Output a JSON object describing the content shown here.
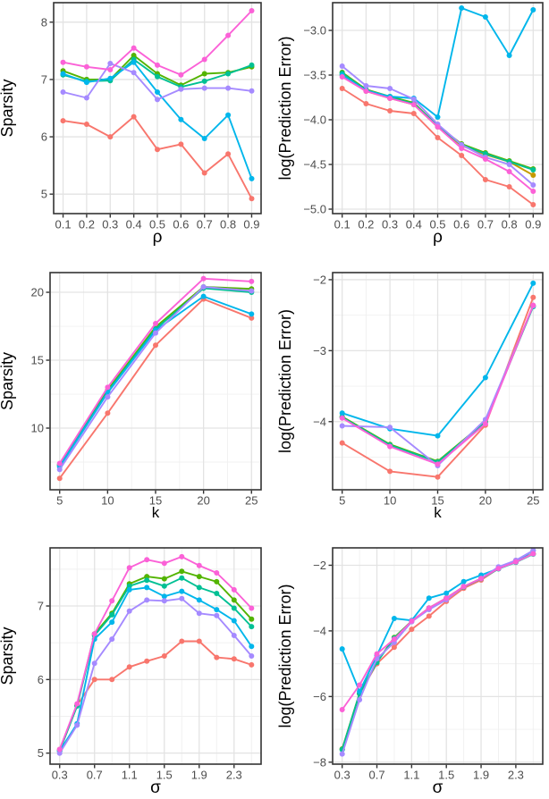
{
  "figure": {
    "background": "#FFFFFF",
    "legend": "none",
    "palette": {
      "salmon": "#F8766D",
      "gold": "#C49A00",
      "green": "#53B400",
      "teal": "#00C094",
      "cyan": "#00B6EB",
      "purple": "#A58AFF",
      "pink": "#FB61D7"
    },
    "style": {
      "grid_major": "#E3E3E3",
      "grid_minor": "#F0F0F0",
      "panel_border": "#333333",
      "tick_color": "#333333",
      "tick_label_color": "#4D4D4D",
      "axis_title_color": "#000000"
    }
  },
  "chart_data": [
    {
      "id": "sparsity-vs-rho",
      "type": "line",
      "title": "",
      "xlabel": "ρ",
      "ylabel": "Sparsity",
      "grid": true,
      "legend": "none",
      "x": [
        0.1,
        0.2,
        0.3,
        0.4,
        0.5,
        0.6,
        0.7,
        0.8,
        0.9
      ],
      "xlim": [
        0.06,
        0.94
      ],
      "ylim": [
        4.66,
        8.34
      ],
      "xticks": {
        "values": [
          0.1,
          0.2,
          0.3,
          0.4,
          0.5,
          0.6,
          0.7,
          0.8,
          0.9
        ],
        "labels": [
          "0.1",
          "0.2",
          "0.3",
          "0.4",
          "0.5",
          "0.6",
          "0.7",
          "0.8",
          "0.9"
        ]
      },
      "yticks": {
        "values": [
          5,
          6,
          7,
          8
        ],
        "labels": [
          "5",
          "6",
          "7",
          "8"
        ]
      },
      "minor_x": [],
      "minor_y": [],
      "series": [
        {
          "name": "salmon",
          "color_key": "salmon",
          "values": [
            6.28,
            6.22,
            6.0,
            6.35,
            5.78,
            5.87,
            5.37,
            5.7,
            4.92
          ]
        },
        {
          "name": "green",
          "color_key": "green",
          "values": [
            7.15,
            7.0,
            7.0,
            7.42,
            7.1,
            6.9,
            7.1,
            7.12,
            7.22
          ]
        },
        {
          "name": "teal",
          "color_key": "teal",
          "values": [
            7.08,
            6.97,
            6.98,
            7.35,
            7.05,
            6.87,
            6.97,
            7.1,
            7.25
          ]
        },
        {
          "name": "cyan",
          "color_key": "cyan",
          "values": [
            7.1,
            6.95,
            7.02,
            7.3,
            6.78,
            6.3,
            5.97,
            6.38,
            5.27
          ]
        },
        {
          "name": "purple",
          "color_key": "purple",
          "values": [
            6.78,
            6.68,
            7.28,
            7.12,
            6.65,
            6.83,
            6.85,
            6.85,
            6.8
          ]
        },
        {
          "name": "pink",
          "color_key": "pink",
          "values": [
            7.3,
            7.22,
            7.17,
            7.55,
            7.25,
            7.08,
            7.35,
            7.77,
            8.2
          ]
        }
      ]
    },
    {
      "id": "logpe-vs-rho",
      "type": "line",
      "title": "",
      "xlabel": "ρ",
      "ylabel": "log(Prediction Error)",
      "grid": true,
      "legend": "none",
      "x": [
        0.1,
        0.2,
        0.3,
        0.4,
        0.5,
        0.6,
        0.7,
        0.8,
        0.9
      ],
      "xlim": [
        0.06,
        0.94
      ],
      "ylim": [
        -5.05,
        -2.69
      ],
      "xticks": {
        "values": [
          0.1,
          0.2,
          0.3,
          0.4,
          0.5,
          0.6,
          0.7,
          0.8,
          0.9
        ],
        "labels": [
          "0.1",
          "0.2",
          "0.3",
          "0.4",
          "0.5",
          "0.6",
          "0.7",
          "0.8",
          "0.9"
        ]
      },
      "yticks": {
        "values": [
          -3.0,
          -3.5,
          -4.0,
          -4.5,
          -5.0
        ],
        "labels": [
          "−3.0",
          "−3.5",
          "−4.0",
          "−4.5",
          "−5.0"
        ]
      },
      "minor_x": [],
      "minor_y": [],
      "series": [
        {
          "name": "salmon",
          "color_key": "salmon",
          "values": [
            -3.65,
            -3.82,
            -3.9,
            -3.93,
            -4.2,
            -4.4,
            -4.67,
            -4.75,
            -4.95
          ]
        },
        {
          "name": "gold",
          "color_key": "gold",
          "values": [
            -3.5,
            -3.68,
            -3.76,
            -3.83,
            -4.08,
            -4.29,
            -4.39,
            -4.47,
            -4.62
          ]
        },
        {
          "name": "green",
          "color_key": "green",
          "values": [
            -3.47,
            -3.66,
            -3.74,
            -3.81,
            -4.07,
            -4.27,
            -4.37,
            -4.46,
            -4.55
          ]
        },
        {
          "name": "teal",
          "color_key": "teal",
          "values": [
            -3.48,
            -3.67,
            -3.75,
            -3.82,
            -4.07,
            -4.28,
            -4.38,
            -4.47,
            -4.56
          ]
        },
        {
          "name": "cyan",
          "color_key": "cyan",
          "values": [
            -3.5,
            -3.67,
            -3.74,
            -3.76,
            -3.97,
            -2.75,
            -2.85,
            -3.28,
            -2.77
          ]
        },
        {
          "name": "purple",
          "color_key": "purple",
          "values": [
            -3.4,
            -3.62,
            -3.65,
            -3.77,
            -4.05,
            -4.28,
            -4.42,
            -4.5,
            -4.73
          ]
        },
        {
          "name": "pink",
          "color_key": "pink",
          "values": [
            -3.52,
            -3.68,
            -3.76,
            -3.83,
            -4.08,
            -4.32,
            -4.44,
            -4.58,
            -4.8
          ]
        }
      ]
    },
    {
      "id": "sparsity-vs-k",
      "type": "line",
      "title": "",
      "xlabel": "k",
      "ylabel": "Sparsity",
      "grid": true,
      "legend": "none",
      "x": [
        5,
        10,
        15,
        20,
        25
      ],
      "xlim": [
        4,
        26
      ],
      "ylim": [
        5.46,
        21.45
      ],
      "xticks": {
        "values": [
          5,
          10,
          15,
          20,
          25
        ],
        "labels": [
          "5",
          "10",
          "15",
          "20",
          "25"
        ]
      },
      "yticks": {
        "values": [
          10,
          15,
          20
        ],
        "labels": [
          "10",
          "15",
          "20"
        ]
      },
      "minor_x": [
        7.5,
        12.5,
        17.5,
        22.5
      ],
      "minor_y": [
        7.5,
        12.5,
        17.5
      ],
      "series": [
        {
          "name": "salmon",
          "color_key": "salmon",
          "values": [
            6.3,
            11.1,
            16.1,
            19.5,
            18.1
          ]
        },
        {
          "name": "green",
          "color_key": "green",
          "values": [
            7.3,
            12.8,
            17.45,
            20.4,
            20.25
          ]
        },
        {
          "name": "teal",
          "color_key": "teal",
          "values": [
            7.25,
            12.7,
            17.3,
            20.3,
            20.0
          ]
        },
        {
          "name": "cyan",
          "color_key": "cyan",
          "values": [
            7.15,
            12.6,
            17.2,
            19.7,
            18.4
          ]
        },
        {
          "name": "purple",
          "color_key": "purple",
          "values": [
            6.95,
            12.3,
            17.0,
            20.4,
            20.1
          ]
        },
        {
          "name": "pink",
          "color_key": "pink",
          "values": [
            7.4,
            13.0,
            17.7,
            21.0,
            20.8
          ]
        }
      ]
    },
    {
      "id": "logpe-vs-k",
      "type": "line",
      "title": "",
      "xlabel": "k",
      "ylabel": "log(Prediction Error)",
      "grid": true,
      "legend": "none",
      "x": [
        5,
        10,
        15,
        20,
        25
      ],
      "xlim": [
        4,
        26
      ],
      "ylim": [
        -4.96,
        -1.9
      ],
      "xticks": {
        "values": [
          5,
          10,
          15,
          20,
          25
        ],
        "labels": [
          "5",
          "10",
          "15",
          "20",
          "25"
        ]
      },
      "yticks": {
        "values": [
          -2,
          -3,
          -4
        ],
        "labels": [
          "−2",
          "−3",
          "−4"
        ]
      },
      "minor_x": [
        7.5,
        12.5,
        17.5,
        22.5
      ],
      "minor_y": [
        -2.5,
        -3.5,
        -4.5
      ],
      "series": [
        {
          "name": "salmon",
          "color_key": "salmon",
          "values": [
            -4.3,
            -4.7,
            -4.78,
            -4.05,
            -2.25
          ]
        },
        {
          "name": "green",
          "color_key": "green",
          "values": [
            -3.93,
            -4.32,
            -4.56,
            -4.0,
            -2.37
          ]
        },
        {
          "name": "teal",
          "color_key": "teal",
          "values": [
            -3.94,
            -4.33,
            -4.57,
            -4.01,
            -2.38
          ]
        },
        {
          "name": "cyan",
          "color_key": "cyan",
          "values": [
            -3.88,
            -4.1,
            -4.2,
            -3.38,
            -2.05
          ]
        },
        {
          "name": "purple",
          "color_key": "purple",
          "values": [
            -4.06,
            -4.08,
            -4.62,
            -3.97,
            -2.37
          ]
        },
        {
          "name": "pink",
          "color_key": "pink",
          "values": [
            -3.95,
            -4.35,
            -4.6,
            -4.03,
            -2.36
          ]
        }
      ]
    },
    {
      "id": "sparsity-vs-sigma",
      "type": "line",
      "title": "",
      "xlabel": "σ",
      "ylabel": "Sparsity",
      "grid": true,
      "legend": "none",
      "x": [
        0.3,
        0.5,
        0.7,
        0.9,
        1.1,
        1.3,
        1.5,
        1.7,
        1.9,
        2.1,
        2.3,
        2.5
      ],
      "xlim": [
        0.19,
        2.61
      ],
      "ylim": [
        4.85,
        7.79
      ],
      "xticks": {
        "values": [
          0.3,
          0.7,
          1.1,
          1.5,
          1.9,
          2.3
        ],
        "labels": [
          "0.3",
          "0.7",
          "1.1",
          "1.5",
          "1.9",
          "2.3"
        ]
      },
      "yticks": {
        "values": [
          5,
          6,
          7
        ],
        "labels": [
          "5",
          "6",
          "7"
        ]
      },
      "minor_x": [
        0.5,
        0.9,
        1.3,
        1.7,
        2.1,
        2.5
      ],
      "minor_y": [
        5.5,
        6.5,
        7.5
      ],
      "series": [
        {
          "name": "salmon",
          "color_key": "salmon",
          "values": [
            5.05,
            5.65,
            6.0,
            6.0,
            6.17,
            6.25,
            6.32,
            6.52,
            6.52,
            6.3,
            6.28,
            6.2
          ]
        },
        {
          "name": "green",
          "color_key": "green",
          "values": [
            5.03,
            5.65,
            6.62,
            6.9,
            7.3,
            7.4,
            7.37,
            7.47,
            7.4,
            7.33,
            7.08,
            6.82
          ]
        },
        {
          "name": "teal",
          "color_key": "teal",
          "values": [
            5.03,
            5.64,
            6.6,
            6.88,
            7.27,
            7.35,
            7.27,
            7.38,
            7.25,
            7.17,
            6.97,
            6.72
          ]
        },
        {
          "name": "cyan",
          "color_key": "cyan",
          "values": [
            5.03,
            5.4,
            6.55,
            6.78,
            7.22,
            7.25,
            7.13,
            7.2,
            7.08,
            6.95,
            6.8,
            6.45
          ]
        },
        {
          "name": "purple",
          "color_key": "purple",
          "values": [
            5.0,
            5.38,
            6.22,
            6.55,
            6.93,
            7.08,
            7.07,
            7.1,
            6.9,
            6.87,
            6.6,
            6.32
          ]
        },
        {
          "name": "pink",
          "color_key": "pink",
          "values": [
            5.05,
            5.67,
            6.62,
            7.07,
            7.52,
            7.63,
            7.58,
            7.67,
            7.55,
            7.45,
            7.22,
            6.97
          ]
        }
      ]
    },
    {
      "id": "logpe-vs-sigma",
      "type": "line",
      "title": "",
      "xlabel": "σ",
      "ylabel": "log(Prediction Error)",
      "grid": true,
      "legend": "none",
      "x": [
        0.3,
        0.5,
        0.7,
        0.9,
        1.1,
        1.3,
        1.5,
        1.7,
        1.9,
        2.1,
        2.3,
        2.5
      ],
      "xlim": [
        0.19,
        2.61
      ],
      "ylim": [
        -8.06,
        -1.47
      ],
      "xticks": {
        "values": [
          0.3,
          0.7,
          1.1,
          1.5,
          1.9,
          2.3
        ],
        "labels": [
          "0.3",
          "0.7",
          "1.1",
          "1.5",
          "1.9",
          "2.3"
        ]
      },
      "yticks": {
        "values": [
          -2,
          -4,
          -6,
          -8
        ],
        "labels": [
          "−2",
          "−4",
          "−6",
          "−8"
        ]
      },
      "minor_x": [
        0.5,
        0.9,
        1.3,
        1.7,
        2.1,
        2.5
      ],
      "minor_y": [
        -3,
        -5,
        -7
      ],
      "series": [
        {
          "name": "salmon",
          "color_key": "salmon",
          "values": [
            -7.6,
            -5.92,
            -5.0,
            -4.5,
            -3.95,
            -3.55,
            -3.1,
            -2.7,
            -2.45,
            -2.1,
            -1.85,
            -1.65
          ]
        },
        {
          "name": "green",
          "color_key": "green",
          "values": [
            -7.6,
            -5.9,
            -4.95,
            -4.2,
            -3.7,
            -3.3,
            -3.0,
            -2.65,
            -2.4,
            -2.1,
            -1.9,
            -1.65
          ]
        },
        {
          "name": "teal",
          "color_key": "teal",
          "values": [
            -7.62,
            -5.91,
            -4.96,
            -4.22,
            -3.71,
            -3.31,
            -3.01,
            -2.66,
            -2.41,
            -2.11,
            -1.91,
            -1.66
          ]
        },
        {
          "name": "cyan",
          "color_key": "cyan",
          "values": [
            -4.55,
            -5.85,
            -4.75,
            -3.62,
            -3.68,
            -3.0,
            -2.85,
            -2.5,
            -2.3,
            -2.1,
            -1.9,
            -1.55
          ]
        },
        {
          "name": "purple",
          "color_key": "purple",
          "values": [
            -7.75,
            -6.1,
            -4.85,
            -4.35,
            -3.72,
            -3.35,
            -3.05,
            -2.65,
            -2.4,
            -2.05,
            -1.85,
            -1.55
          ]
        },
        {
          "name": "pink",
          "color_key": "pink",
          "values": [
            -6.4,
            -5.65,
            -4.7,
            -4.25,
            -3.7,
            -3.3,
            -3.0,
            -2.65,
            -2.4,
            -2.1,
            -1.9,
            -1.65
          ]
        }
      ]
    }
  ]
}
